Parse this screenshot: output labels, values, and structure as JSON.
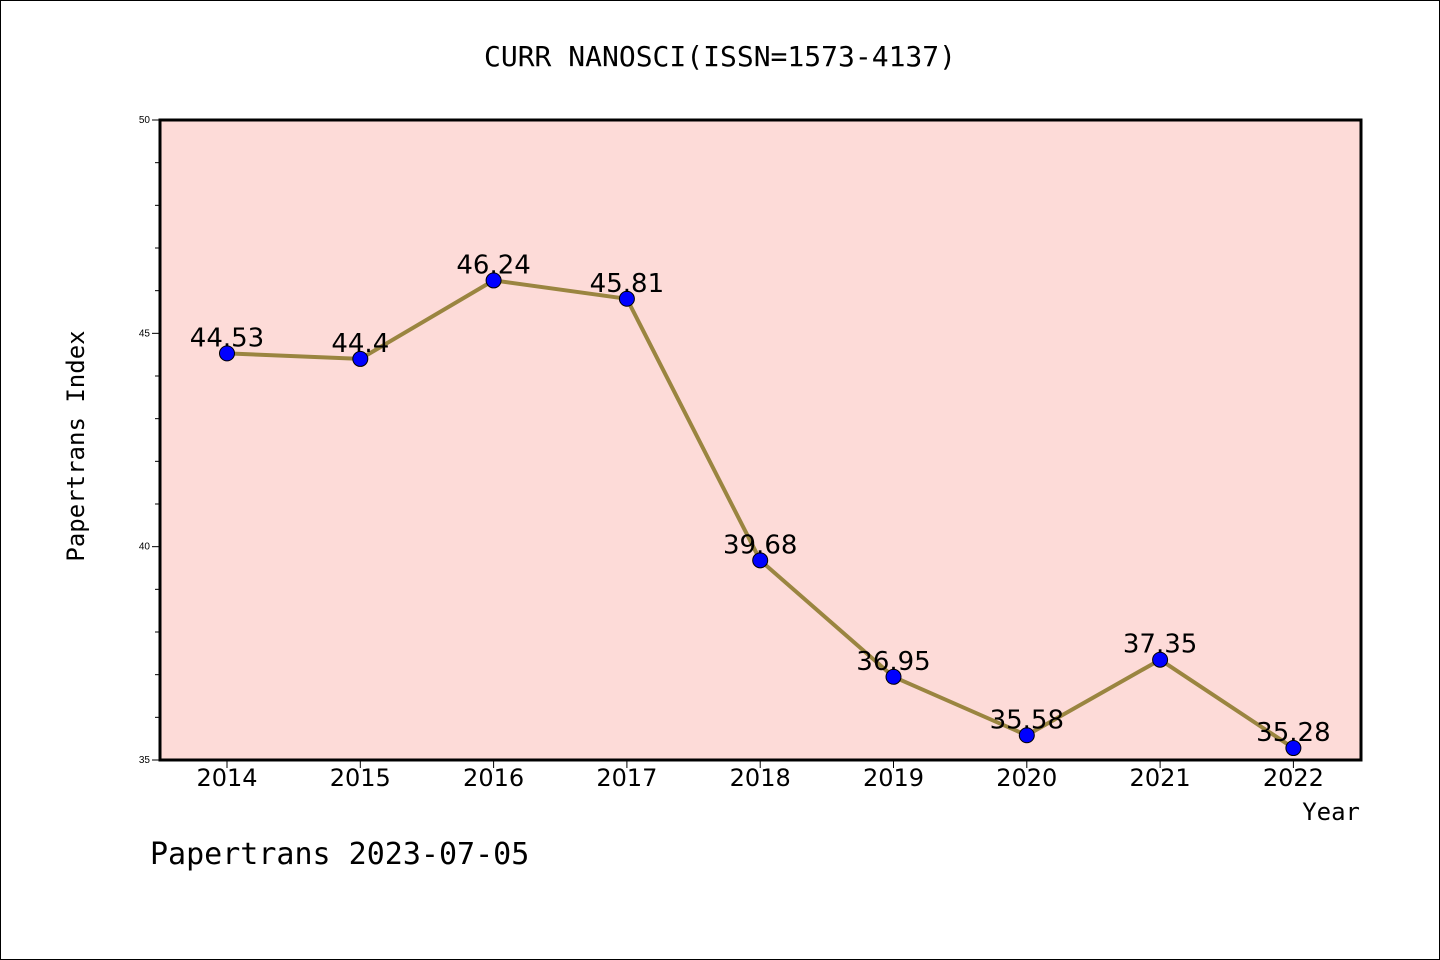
{
  "chart_data": {
    "type": "line",
    "title": "CURR NANOSCI(ISSN=1573-4137)",
    "xlabel": "Year",
    "ylabel": "Papertrans Index",
    "categories": [
      "2014",
      "2015",
      "2016",
      "2017",
      "2018",
      "2019",
      "2020",
      "2021",
      "2022"
    ],
    "values": [
      44.53,
      44.4,
      46.24,
      45.81,
      39.68,
      36.95,
      35.58,
      37.35,
      35.28
    ],
    "data_labels": [
      "44.53",
      "44.4",
      "46.24",
      "45.81",
      "39.68",
      "36.95",
      "35.58",
      "37.35",
      "35.28"
    ],
    "ylim": [
      35,
      50
    ],
    "yticks": [
      35,
      40,
      45,
      50
    ],
    "ytick_labels": [
      "35",
      "40",
      "45",
      "50"
    ],
    "grid": false,
    "legend": "none",
    "colors": {
      "plot_background": "#fddbd8",
      "line": "#9a8540",
      "marker": "#0000ff"
    }
  },
  "footer": "Papertrans 2023-07-05"
}
